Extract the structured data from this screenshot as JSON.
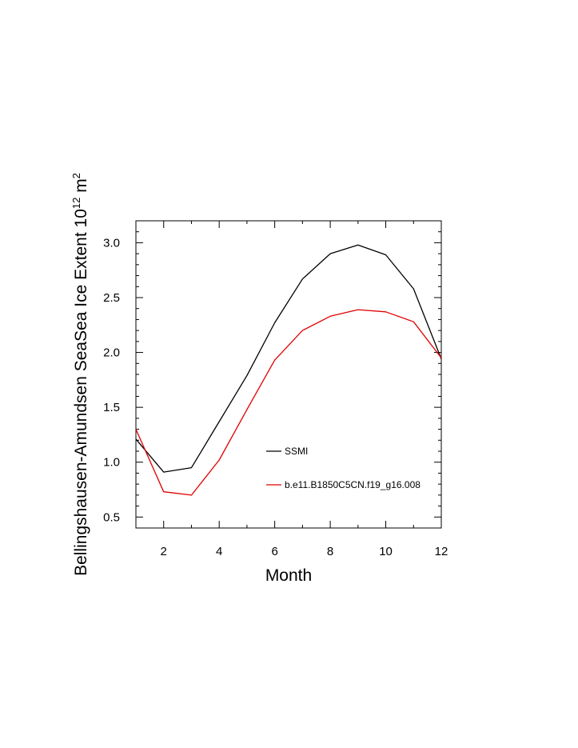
{
  "chart_data": {
    "type": "line",
    "title": "",
    "xlabel": "Month",
    "ylabel": {
      "main": "Bellingshausen-Amundsen SeaSea Ice Extent 10",
      "exp": "12",
      "unit": " m",
      "unit_exp": "2"
    },
    "xlim": [
      1,
      12
    ],
    "ylim": [
      0.4,
      3.2
    ],
    "x": [
      1,
      2,
      3,
      4,
      5,
      6,
      7,
      8,
      9,
      10,
      11,
      12
    ],
    "x_ticks": [
      2,
      4,
      6,
      8,
      10,
      12
    ],
    "y_ticks": [
      0.5,
      1.0,
      1.5,
      2.0,
      2.5,
      3.0
    ],
    "x_tick_labels": [
      "2",
      "4",
      "6",
      "8",
      "10",
      "12"
    ],
    "y_tick_labels": [
      "0.5",
      "1.0",
      "1.5",
      "2.0",
      "2.5",
      "3.0"
    ],
    "grid": false,
    "legend_position": "center-right",
    "series": [
      {
        "name": "SSMI",
        "color": "#000000",
        "values": [
          1.21,
          0.91,
          0.95,
          1.37,
          1.79,
          2.27,
          2.67,
          2.9,
          2.98,
          2.89,
          2.58,
          1.94
        ]
      },
      {
        "name": "b.e11.B1850C5CN.f19_g16.008",
        "color": "#e00000",
        "values": [
          1.3,
          0.73,
          0.7,
          1.02,
          1.48,
          1.93,
          2.2,
          2.33,
          2.39,
          2.37,
          2.28,
          1.95
        ]
      }
    ]
  }
}
